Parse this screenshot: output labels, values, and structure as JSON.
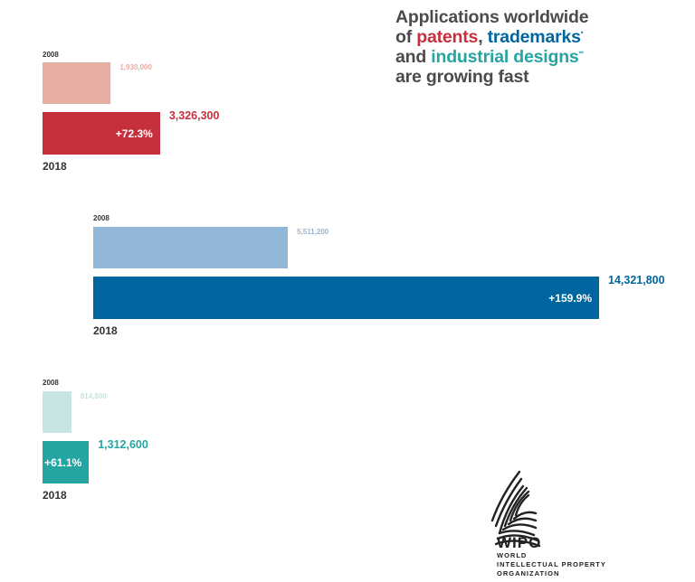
{
  "title": {
    "line1": "Applications worldwide",
    "of": "of ",
    "patents": "patents",
    "comma": ", ",
    "trademarks": "trademarks",
    "star1": "*",
    "and": "and ",
    "designs": "industrial designs",
    "star2": "**",
    "line4": "are growing fast"
  },
  "colors": {
    "patents_2008": "#e7aea4",
    "patents_2018": "#c5303c",
    "trademarks_2008": "#91b7d8",
    "trademarks_2018": "#00669f",
    "designs_2008": "#c6e4e3",
    "designs_2018": "#24a5a1",
    "patents_label": "#c5303c",
    "trademarks_label": "#00669f",
    "designs_label": "#24a5a1"
  },
  "chart_data": [
    {
      "type": "bar",
      "orientation": "horizontal",
      "categories": [
        "2008",
        "2018"
      ],
      "values": [
        1930000,
        3326300
      ],
      "value_labels": [
        "1,930,000",
        "3,326,300"
      ],
      "change_label": "+72.3%"
    },
    {
      "type": "bar",
      "orientation": "horizontal",
      "categories": [
        "2008",
        "2018"
      ],
      "values": [
        5511200,
        14321800
      ],
      "value_labels": [
        "5,511,200",
        "14,321,800"
      ],
      "change_label": "+159.9%"
    },
    {
      "type": "bar",
      "orientation": "horizontal",
      "categories": [
        "2008",
        "2018"
      ],
      "values": [
        814800,
        1312600
      ],
      "value_labels": [
        "814,800",
        "1,312,600"
      ],
      "change_label": "+61.1%"
    }
  ],
  "logo": {
    "name": "WIPO",
    "line1": "WORLD",
    "line2": "INTELLECTUAL PROPERTY",
    "line3": "ORGANIZATION",
    "icon": "wipo-globe-logo-icon"
  }
}
